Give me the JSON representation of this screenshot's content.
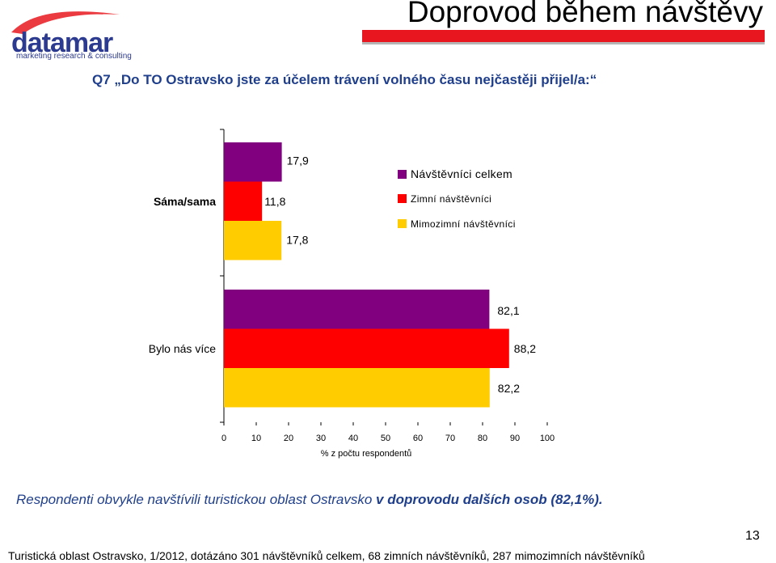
{
  "header": {
    "title": "Doprovod během návštěvy",
    "logo_name": "datamar",
    "logo_tagline": "marketing research & consulting"
  },
  "question": "Q7 „Do TO Ostravsko jste za účelem trávení volného času nejčastěji přijel/a:“",
  "summary": {
    "prefix": "Respondenti obvykle navštívili turistickou oblast Ostravsko ",
    "bold": "v doprovodu dalších osob (82,1%)."
  },
  "page_number": "13",
  "source": "Turistická oblast Ostravsko, 1/2012, dotázáno 301 návštěvníků celkem, 68 zimních návštěvníků, 287 mimozimních návštěvníků",
  "chart_data": {
    "type": "bar",
    "orientation": "horizontal",
    "categories": [
      "Sáma/sama",
      "Bylo nás více"
    ],
    "series": [
      {
        "name": "Návštěvníci celkem",
        "color": "#800080",
        "values": [
          17.9,
          82.1
        ],
        "labels": [
          "17,9",
          "82,1"
        ]
      },
      {
        "name": "Zimní návštěvníci",
        "color": "#ff0000",
        "values": [
          11.8,
          88.2
        ],
        "labels": [
          "11,8",
          "88,2"
        ]
      },
      {
        "name": "Mimozimní návštěvníci",
        "color": "#ffcc00",
        "values": [
          17.8,
          82.2
        ],
        "labels": [
          "17,8",
          "82,2"
        ]
      }
    ],
    "xlabel": "% z počtu respondentů",
    "xlim": [
      0,
      100
    ],
    "xticks": [
      0,
      10,
      20,
      30,
      40,
      50,
      60,
      70,
      80,
      90,
      100
    ],
    "legend_position": "right-of-first-group",
    "grid": false
  }
}
